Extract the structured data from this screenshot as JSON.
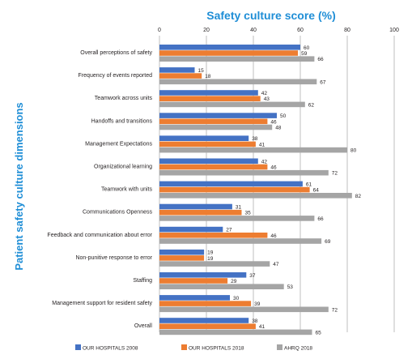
{
  "chart_data": {
    "type": "bar",
    "orientation": "horizontal",
    "title": "Safety culture score (%)",
    "ylabel": "Patient safety culture dimensions",
    "xlabel": "",
    "xlim": [
      0,
      100
    ],
    "x_ticks": [
      "0",
      "20",
      "40",
      "60",
      "80",
      "100"
    ],
    "x_tick_values": [
      0,
      20,
      40,
      60,
      80,
      100
    ],
    "x_axis_position": "top",
    "grid": "vertical gridlines",
    "legend_position": "bottom",
    "categories": [
      "Overall perceptions of safety",
      "Frequency of events reported",
      "Teamwork across units",
      "Handoffs and transitions",
      "Management Expectations",
      "Organizational learning",
      "Teamwork with units",
      "Communications Openness",
      "Feedback and communication about error",
      "Non-punitive response to error",
      "Staffing",
      "Management support for resident safety",
      "Overall"
    ],
    "series": [
      {
        "name": "OUR HOSPITALS 2008",
        "color": "#4472c4",
        "values": [
          60,
          15,
          42,
          50,
          38,
          42,
          61,
          31,
          27,
          19,
          37,
          30,
          38
        ],
        "labels": [
          "60",
          "15",
          "42",
          "50",
          "38",
          "42",
          "61",
          "31",
          "27",
          "19",
          "37",
          "30",
          "38"
        ]
      },
      {
        "name": "OUR HOSPITALS 2018",
        "color": "#ed7d31",
        "values": [
          59,
          18,
          43,
          46,
          41,
          46,
          64,
          35,
          46,
          19,
          29,
          39,
          41
        ],
        "labels": [
          "59",
          "18",
          "43",
          "46",
          "41",
          "46",
          "64",
          "35",
          "46",
          "19",
          "29",
          "39",
          "41"
        ]
      },
      {
        "name": "AHRQ 2018",
        "color": "#a5a5a5",
        "values": [
          66,
          67,
          62,
          48,
          80,
          72,
          82,
          66,
          69,
          47,
          53,
          72,
          65
        ],
        "labels": [
          "66",
          "67",
          "62",
          "48",
          "80",
          "72",
          "82",
          "66",
          "69",
          "47",
          "53",
          "72",
          "65"
        ]
      }
    ],
    "colors": {
      "title": "#1f8ed6",
      "axis_text": "#231f20",
      "grid": "#bfbfbf"
    }
  }
}
